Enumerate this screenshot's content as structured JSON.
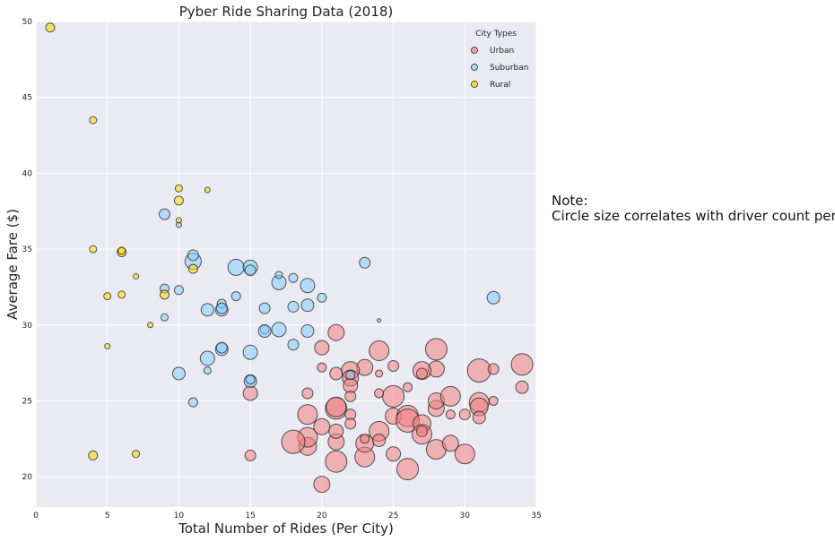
{
  "note": {
    "heading": "Note:",
    "text": "Circle size correlates with driver count per city."
  },
  "chart_data": {
    "type": "scatter",
    "title": "Pyber Ride Sharing Data (2018)",
    "xlabel": "Total Number of Rides (Per City)",
    "ylabel": "Average Fare ($)",
    "xlim": [
      0,
      35
    ],
    "ylim": [
      18,
      50
    ],
    "xticks": [
      0,
      5,
      10,
      15,
      20,
      25,
      30,
      35
    ],
    "yticks": [
      20,
      25,
      30,
      35,
      40,
      45,
      50
    ],
    "grid": true,
    "legend": {
      "title": "City Types",
      "placement": "top-right"
    },
    "series": [
      {
        "name": "Urban",
        "color": "#F08080",
        "points": [
          {
            "x": 20,
            "y": 19.5,
            "r": 9
          },
          {
            "x": 15,
            "y": 21.4,
            "r": 6
          },
          {
            "x": 19,
            "y": 22,
            "r": 10
          },
          {
            "x": 19,
            "y": 22.6,
            "r": 11
          },
          {
            "x": 18,
            "y": 22.3,
            "r": 13
          },
          {
            "x": 21,
            "y": 21,
            "r": 12
          },
          {
            "x": 20,
            "y": 23.3,
            "r": 9
          },
          {
            "x": 21,
            "y": 22.3,
            "r": 9
          },
          {
            "x": 19,
            "y": 24.1,
            "r": 11
          },
          {
            "x": 21,
            "y": 24.5,
            "r": 12
          },
          {
            "x": 21,
            "y": 24.6,
            "r": 11
          },
          {
            "x": 21,
            "y": 23,
            "r": 8
          },
          {
            "x": 22,
            "y": 24.1,
            "r": 6
          },
          {
            "x": 22,
            "y": 23.5,
            "r": 6
          },
          {
            "x": 19,
            "y": 25.5,
            "r": 6
          },
          {
            "x": 23,
            "y": 21.3,
            "r": 11
          },
          {
            "x": 23,
            "y": 22.2,
            "r": 10
          },
          {
            "x": 23,
            "y": 22.5,
            "r": 5
          },
          {
            "x": 24,
            "y": 23,
            "r": 11
          },
          {
            "x": 24,
            "y": 22.4,
            "r": 7
          },
          {
            "x": 25,
            "y": 21.5,
            "r": 8
          },
          {
            "x": 25,
            "y": 24,
            "r": 9
          },
          {
            "x": 25,
            "y": 25.3,
            "r": 12
          },
          {
            "x": 26,
            "y": 20.5,
            "r": 12
          },
          {
            "x": 26,
            "y": 24,
            "r": 12
          },
          {
            "x": 26,
            "y": 23.7,
            "r": 13
          },
          {
            "x": 27,
            "y": 23.5,
            "r": 10
          },
          {
            "x": 27,
            "y": 22.8,
            "r": 11
          },
          {
            "x": 27,
            "y": 23,
            "r": 6
          },
          {
            "x": 28,
            "y": 21.8,
            "r": 11
          },
          {
            "x": 28,
            "y": 24.5,
            "r": 9
          },
          {
            "x": 28,
            "y": 25,
            "r": 9
          },
          {
            "x": 29,
            "y": 25.3,
            "r": 11
          },
          {
            "x": 29,
            "y": 24.1,
            "r": 5
          },
          {
            "x": 29,
            "y": 22.2,
            "r": 9
          },
          {
            "x": 30,
            "y": 21.5,
            "r": 11
          },
          {
            "x": 30,
            "y": 24.1,
            "r": 6
          },
          {
            "x": 31,
            "y": 24.9,
            "r": 11
          },
          {
            "x": 31,
            "y": 24.6,
            "r": 10
          },
          {
            "x": 31,
            "y": 23.9,
            "r": 7
          },
          {
            "x": 32,
            "y": 25,
            "r": 5
          },
          {
            "x": 34,
            "y": 25.9,
            "r": 7
          },
          {
            "x": 31,
            "y": 27,
            "r": 13
          },
          {
            "x": 32,
            "y": 27.1,
            "r": 6
          },
          {
            "x": 34,
            "y": 27.4,
            "r": 12
          },
          {
            "x": 28,
            "y": 28.4,
            "r": 12
          },
          {
            "x": 28,
            "y": 27.1,
            "r": 9
          },
          {
            "x": 27,
            "y": 27,
            "r": 10
          },
          {
            "x": 27,
            "y": 26.8,
            "r": 6
          },
          {
            "x": 26,
            "y": 25.9,
            "r": 5
          },
          {
            "x": 25,
            "y": 27.3,
            "r": 6
          },
          {
            "x": 24,
            "y": 28.3,
            "r": 11
          },
          {
            "x": 24,
            "y": 26.8,
            "r": 4
          },
          {
            "x": 24,
            "y": 25.5,
            "r": 5
          },
          {
            "x": 23,
            "y": 27.2,
            "r": 9
          },
          {
            "x": 22,
            "y": 27,
            "r": 10
          },
          {
            "x": 22,
            "y": 26.5,
            "r": 9
          },
          {
            "x": 22,
            "y": 26,
            "r": 8
          },
          {
            "x": 21,
            "y": 26.8,
            "r": 7
          },
          {
            "x": 20,
            "y": 27.2,
            "r": 5
          },
          {
            "x": 20,
            "y": 28.5,
            "r": 8
          },
          {
            "x": 21,
            "y": 29.5,
            "r": 9
          },
          {
            "x": 15,
            "y": 25.5,
            "r": 8
          },
          {
            "x": 22,
            "y": 25.3,
            "r": 6
          }
        ]
      },
      {
        "name": "Suburban",
        "color": "#87CEFA",
        "points": [
          {
            "x": 11,
            "y": 24.9,
            "r": 5
          },
          {
            "x": 10,
            "y": 26.8,
            "r": 7
          },
          {
            "x": 12,
            "y": 27,
            "r": 4
          },
          {
            "x": 12,
            "y": 27.8,
            "r": 8
          },
          {
            "x": 15,
            "y": 26.3,
            "r": 7
          },
          {
            "x": 15,
            "y": 26.4,
            "r": 5
          },
          {
            "x": 15,
            "y": 28.2,
            "r": 8
          },
          {
            "x": 13,
            "y": 28.4,
            "r": 7
          },
          {
            "x": 13,
            "y": 28.5,
            "r": 6
          },
          {
            "x": 12,
            "y": 31,
            "r": 7
          },
          {
            "x": 13,
            "y": 31,
            "r": 7
          },
          {
            "x": 13,
            "y": 31.4,
            "r": 5
          },
          {
            "x": 13,
            "y": 31.1,
            "r": 6
          },
          {
            "x": 14,
            "y": 31.9,
            "r": 5
          },
          {
            "x": 14,
            "y": 33.8,
            "r": 9
          },
          {
            "x": 15,
            "y": 33.8,
            "r": 8
          },
          {
            "x": 15,
            "y": 33.6,
            "r": 6
          },
          {
            "x": 16,
            "y": 31.1,
            "r": 6
          },
          {
            "x": 16,
            "y": 29.7,
            "r": 5
          },
          {
            "x": 16,
            "y": 29.6,
            "r": 7
          },
          {
            "x": 17,
            "y": 29.7,
            "r": 8
          },
          {
            "x": 17,
            "y": 32.8,
            "r": 8
          },
          {
            "x": 17,
            "y": 33.3,
            "r": 4
          },
          {
            "x": 18,
            "y": 33.1,
            "r": 5
          },
          {
            "x": 18,
            "y": 31.2,
            "r": 6
          },
          {
            "x": 18,
            "y": 28.7,
            "r": 6
          },
          {
            "x": 19,
            "y": 29.6,
            "r": 7
          },
          {
            "x": 19,
            "y": 31.3,
            "r": 7
          },
          {
            "x": 19,
            "y": 32.6,
            "r": 8
          },
          {
            "x": 20,
            "y": 31.8,
            "r": 5
          },
          {
            "x": 22,
            "y": 26.7,
            "r": 5
          },
          {
            "x": 23,
            "y": 34.1,
            "r": 6
          },
          {
            "x": 24,
            "y": 30.3,
            "r": 2
          },
          {
            "x": 32,
            "y": 31.8,
            "r": 7
          },
          {
            "x": 9,
            "y": 30.5,
            "r": 4
          },
          {
            "x": 9,
            "y": 32.4,
            "r": 5
          },
          {
            "x": 9,
            "y": 37.3,
            "r": 6
          },
          {
            "x": 10,
            "y": 36.6,
            "r": 3
          },
          {
            "x": 10,
            "y": 32.3,
            "r": 5
          },
          {
            "x": 11,
            "y": 34.2,
            "r": 9
          },
          {
            "x": 11,
            "y": 34.6,
            "r": 6
          }
        ]
      },
      {
        "name": "Rural",
        "color": "#FFD700",
        "points": [
          {
            "x": 1,
            "y": 49.6,
            "r": 5
          },
          {
            "x": 4,
            "y": 43.5,
            "r": 4
          },
          {
            "x": 4,
            "y": 35,
            "r": 4
          },
          {
            "x": 4,
            "y": 21.4,
            "r": 5
          },
          {
            "x": 5,
            "y": 31.9,
            "r": 4
          },
          {
            "x": 5,
            "y": 28.6,
            "r": 3
          },
          {
            "x": 6,
            "y": 34.8,
            "r": 5
          },
          {
            "x": 6,
            "y": 34.9,
            "r": 4
          },
          {
            "x": 6,
            "y": 32,
            "r": 4
          },
          {
            "x": 7,
            "y": 33.2,
            "r": 3
          },
          {
            "x": 7,
            "y": 21.5,
            "r": 4
          },
          {
            "x": 8,
            "y": 30,
            "r": 3
          },
          {
            "x": 9,
            "y": 32,
            "r": 5
          },
          {
            "x": 10,
            "y": 39,
            "r": 4
          },
          {
            "x": 10,
            "y": 38.2,
            "r": 5
          },
          {
            "x": 10,
            "y": 36.9,
            "r": 3
          },
          {
            "x": 11,
            "y": 33.7,
            "r": 5
          },
          {
            "x": 12,
            "y": 38.9,
            "r": 3
          }
        ]
      }
    ]
  }
}
